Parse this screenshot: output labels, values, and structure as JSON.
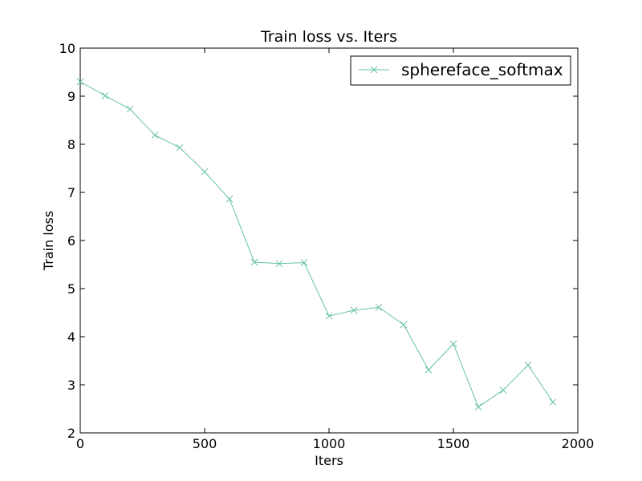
{
  "chart_data": {
    "type": "line",
    "title": "Train loss  vs. Iters",
    "xlabel": "Iters",
    "ylabel": "Train loss",
    "xlim": [
      0,
      2000
    ],
    "ylim": [
      2,
      10
    ],
    "xticks": [
      0,
      500,
      1000,
      1500,
      2000
    ],
    "yticks": [
      2,
      3,
      4,
      5,
      6,
      7,
      8,
      9,
      10
    ],
    "xtick_labels": [
      "0",
      "500",
      "1000",
      "1500",
      "2000"
    ],
    "ytick_labels": [
      "2",
      "3",
      "4",
      "5",
      "6",
      "7",
      "8",
      "9",
      "10"
    ],
    "grid": false,
    "legend_position": "top-right",
    "series": [
      {
        "name": "sphereface_softmax",
        "color": "#66c2a5",
        "marker": "x",
        "x": [
          0,
          100,
          200,
          300,
          400,
          500,
          600,
          700,
          800,
          900,
          1000,
          1100,
          1200,
          1300,
          1400,
          1500,
          1600,
          1700,
          1800,
          1900
        ],
        "y": [
          9.3,
          9.01,
          8.73,
          8.19,
          7.93,
          7.43,
          6.86,
          5.55,
          5.52,
          5.54,
          4.43,
          4.55,
          4.61,
          4.25,
          3.31,
          3.85,
          2.54,
          2.89,
          3.41,
          2.64
        ]
      }
    ]
  }
}
